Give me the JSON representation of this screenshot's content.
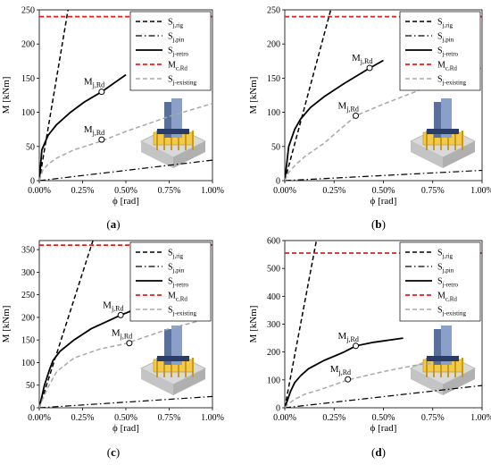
{
  "legend_labels": [
    {
      "main": "S",
      "sub": "j,rig"
    },
    {
      "main": "S",
      "sub": "j,pin"
    },
    {
      "main": "S",
      "sub": "j-retro"
    },
    {
      "main": "M",
      "sub": "c,Rd"
    },
    {
      "main": "S",
      "sub": "j-existing"
    }
  ],
  "point_label": {
    "main": "M",
    "sub": "j,Rd"
  },
  "colors": {
    "red": "#e02020",
    "gray": "#a8a8a8",
    "black": "#000000"
  },
  "chart_data": [
    {
      "type": "line",
      "caption": {
        "open": "(",
        "letter": "a",
        "close": ")"
      },
      "xlabel": "ϕ [rad]",
      "ylabel": "M [kNm]",
      "xlim": [
        0,
        1.0
      ],
      "ylim": [
        0,
        250
      ],
      "xticks": [
        "0.00%",
        "0.25%",
        "0.50%",
        "0.75%",
        "1.00%"
      ],
      "yticks": [
        "0",
        "50",
        "100",
        "150",
        "200",
        "250"
      ],
      "grid": false,
      "legend": "top-right",
      "series": [
        {
          "x": [
            0,
            0.166
          ],
          "y": [
            0,
            250
          ]
        },
        {
          "x": [
            0,
            1.0
          ],
          "y": [
            0,
            30
          ]
        },
        {
          "x": [
            0,
            0.015,
            0.05,
            0.1,
            0.18,
            0.26,
            0.36,
            0.5
          ],
          "y": [
            0,
            45,
            66,
            82,
            100,
            115,
            130,
            155
          ]
        },
        {
          "x": [
            0,
            1.0
          ],
          "y": [
            240,
            240
          ]
        },
        {
          "x": [
            0,
            0.02,
            0.05,
            0.1,
            0.2,
            0.36,
            0.5,
            0.75,
            1.0
          ],
          "y": [
            0,
            15,
            24,
            33,
            45,
            58,
            72,
            94,
            113
          ]
        }
      ],
      "points": [
        {
          "x": 0.36,
          "y": 130
        },
        {
          "x": 0.36,
          "y": 60
        }
      ]
    },
    {
      "type": "line",
      "caption": {
        "open": "(",
        "letter": "b",
        "close": ")"
      },
      "xlabel": "ϕ [rad]",
      "ylabel": "M [kNm]",
      "xlim": [
        0,
        1.0
      ],
      "ylim": [
        0,
        250
      ],
      "xticks": [
        "0.00%",
        "0.25%",
        "0.50%",
        "0.75%",
        "1.00%"
      ],
      "yticks": [
        "0",
        "50",
        "100",
        "150",
        "200",
        "250"
      ],
      "grid": false,
      "legend": "top-right",
      "series": [
        {
          "x": [
            0,
            0.233
          ],
          "y": [
            0,
            250
          ]
        },
        {
          "x": [
            0,
            1.0
          ],
          "y": [
            0,
            15
          ]
        },
        {
          "x": [
            0,
            0.02,
            0.05,
            0.08,
            0.13,
            0.2,
            0.3,
            0.42,
            0.5
          ],
          "y": [
            0,
            50,
            75,
            90,
            107,
            123,
            142,
            163,
            176
          ]
        },
        {
          "x": [
            0,
            1.0
          ],
          "y": [
            240,
            240
          ]
        },
        {
          "x": [
            0,
            0.02,
            0.05,
            0.1,
            0.2,
            0.36,
            0.5,
            0.75,
            1.0
          ],
          "y": [
            0,
            12,
            22,
            35,
            55,
            95,
            112,
            140,
            165
          ]
        }
      ],
      "points": [
        {
          "x": 0.43,
          "y": 165
        },
        {
          "x": 0.36,
          "y": 95
        }
      ]
    },
    {
      "type": "line",
      "caption": {
        "open": "(",
        "letter": "c",
        "close": ")"
      },
      "xlabel": "ϕ [rad]",
      "ylabel": "M [kNm]",
      "xlim": [
        0,
        1.0
      ],
      "ylim": [
        0,
        370
      ],
      "xticks": [
        "0.00%",
        "0.25%",
        "0.50%",
        "0.75%",
        "1.00%"
      ],
      "yticks": [
        "0",
        "50",
        "100",
        "150",
        "200",
        "250",
        "300",
        "350"
      ],
      "grid": false,
      "legend": "top-right",
      "series": [
        {
          "x": [
            0,
            0.31
          ],
          "y": [
            0,
            370
          ]
        },
        {
          "x": [
            0,
            1.0
          ],
          "y": [
            0,
            25
          ]
        },
        {
          "x": [
            0,
            0.03,
            0.06,
            0.08,
            0.12,
            0.2,
            0.3,
            0.47,
            0.6
          ],
          "y": [
            0,
            50,
            85,
            105,
            125,
            150,
            175,
            205,
            225
          ]
        },
        {
          "x": [
            0,
            1.0
          ],
          "y": [
            360,
            360
          ]
        },
        {
          "x": [
            0,
            0.02,
            0.05,
            0.1,
            0.2,
            0.35,
            0.5,
            0.75,
            1.0
          ],
          "y": [
            0,
            20,
            45,
            80,
            110,
            130,
            142,
            175,
            200
          ]
        }
      ],
      "points": [
        {
          "x": 0.47,
          "y": 205
        },
        {
          "x": 0.52,
          "y": 143
        }
      ]
    },
    {
      "type": "line",
      "caption": {
        "open": "(",
        "letter": "d",
        "close": ")"
      },
      "xlabel": "ϕ [rad]",
      "ylabel": "M [kNm]",
      "xlim": [
        0,
        1.0
      ],
      "ylim": [
        0,
        600
      ],
      "xticks": [
        "0.00%",
        "0.25%",
        "0.50%",
        "0.75%",
        "1.00%"
      ],
      "yticks": [
        "0",
        "100",
        "200",
        "300",
        "400",
        "500",
        "600"
      ],
      "grid": false,
      "legend": "top-right",
      "series": [
        {
          "x": [
            0,
            0.16
          ],
          "y": [
            0,
            600
          ]
        },
        {
          "x": [
            0,
            1.0
          ],
          "y": [
            0,
            80
          ]
        },
        {
          "x": [
            0,
            0.03,
            0.05,
            0.08,
            0.12,
            0.2,
            0.3,
            0.36,
            0.45,
            0.6
          ],
          "y": [
            0,
            60,
            90,
            115,
            140,
            170,
            200,
            222,
            235,
            250
          ]
        },
        {
          "x": [
            0,
            1.0
          ],
          "y": [
            555,
            555
          ]
        },
        {
          "x": [
            0,
            0.02,
            0.05,
            0.1,
            0.2,
            0.32,
            0.5,
            0.68,
            0.75
          ],
          "y": [
            0,
            15,
            30,
            48,
            70,
            100,
            130,
            155,
            160
          ]
        }
      ],
      "points": [
        {
          "x": 0.36,
          "y": 222
        },
        {
          "x": 0.32,
          "y": 102
        }
      ]
    }
  ]
}
